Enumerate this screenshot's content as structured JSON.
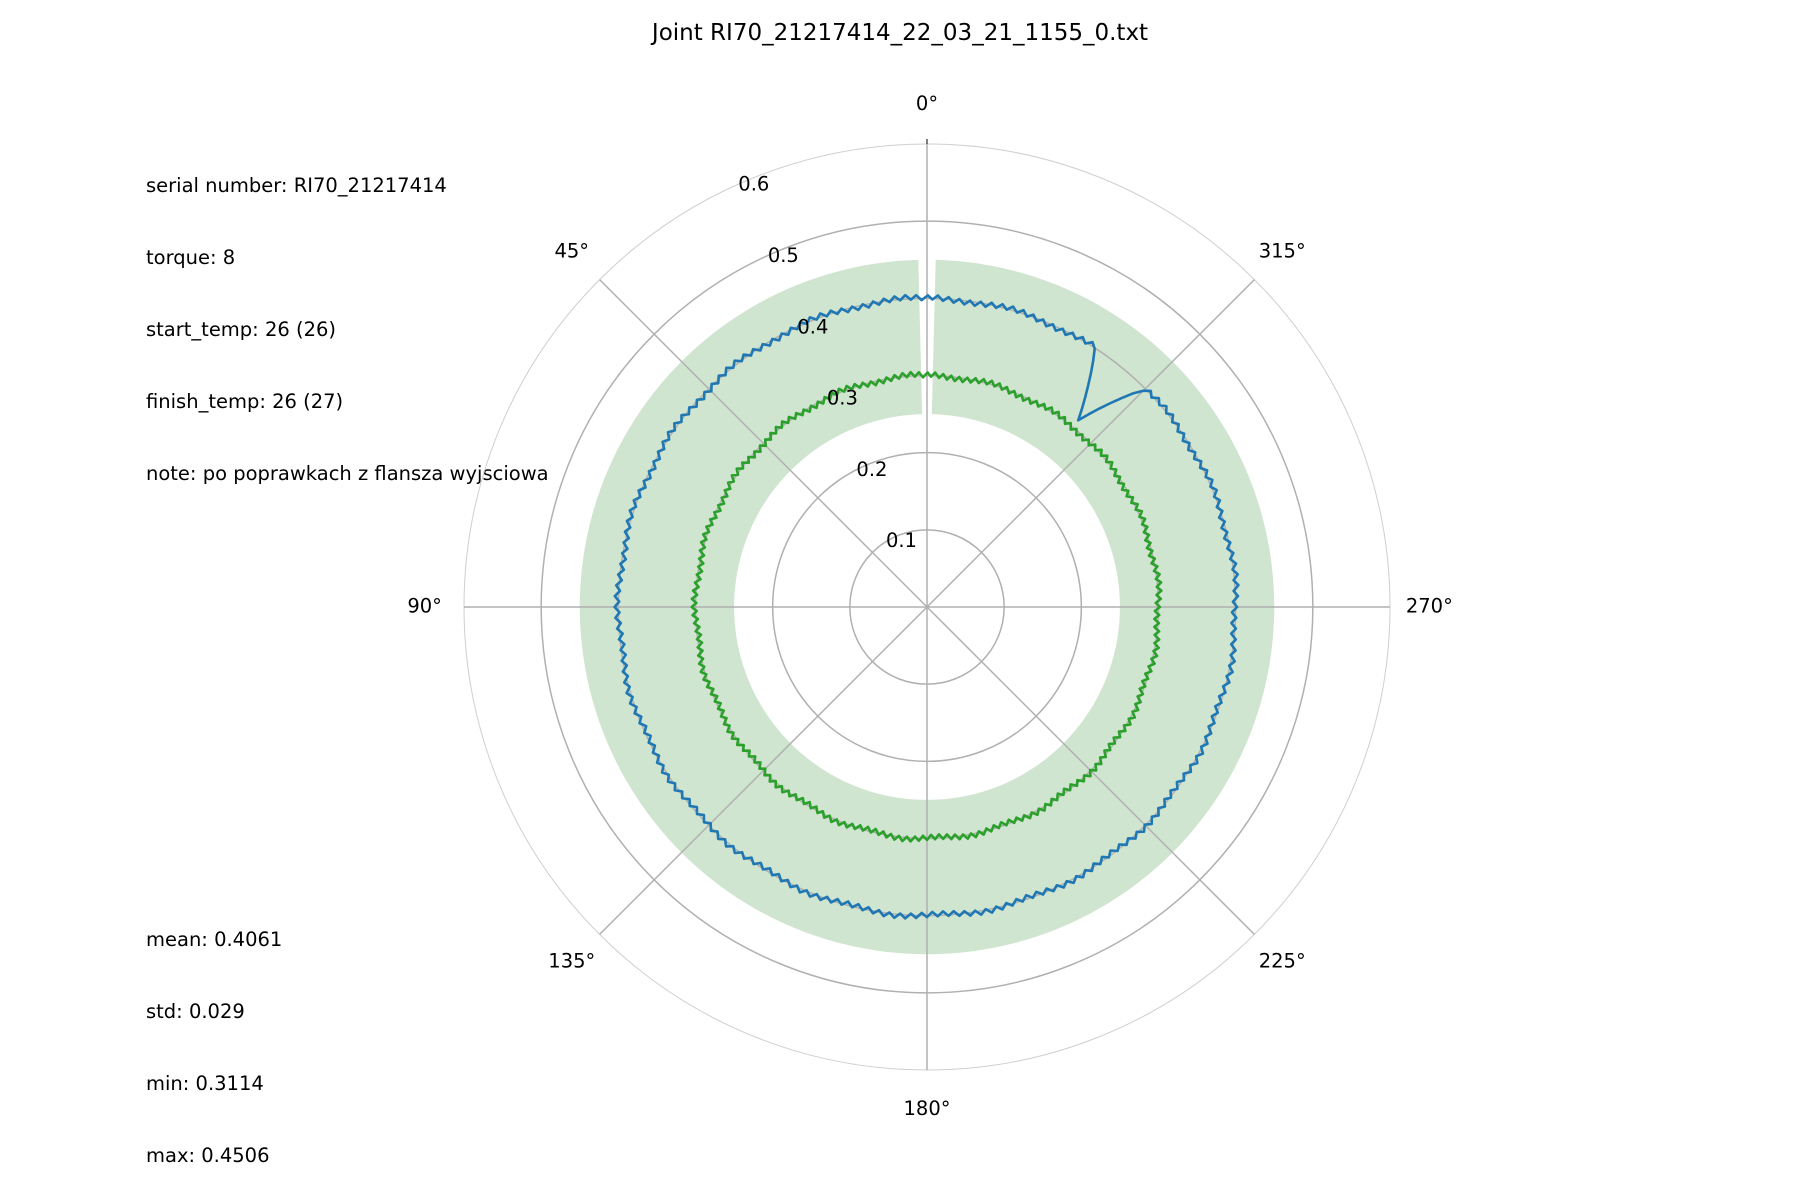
{
  "chart_data": {
    "type": "polar-line",
    "title": "Joint RI70_21217414_22_03_21_1155_0.txt",
    "theta_ticks": [
      "0°",
      "45°",
      "90°",
      "135°",
      "180°",
      "225°",
      "270°",
      "315°"
    ],
    "theta_direction": "counterclockwise",
    "theta_zero": "top",
    "r_ticks": [
      "0.1",
      "0.2",
      "0.3",
      "0.4",
      "0.5",
      "0.6"
    ],
    "rlim": [
      0,
      0.6
    ],
    "grid": true,
    "band": {
      "r_min": 0.25,
      "r_max": 0.45,
      "color": "#cfe5cf"
    },
    "series": [
      {
        "color": "#1f77b4",
        "base_r": 0.4,
        "spike": {
          "theta_deg": 321,
          "r": 0.3114
        }
      },
      {
        "color": "#2ca02c",
        "base_r": 0.3
      }
    ]
  },
  "info_top": [
    "serial number: RI70_21217414",
    "torque: 8",
    "start_temp: 26 (26)",
    "finish_temp: 26 (27)",
    "note: po poprawkach z flansza wyjsciowa"
  ],
  "info_bottom": [
    "mean: 0.4061",
    "std: 0.029",
    "min: 0.3114",
    "max: 0.4506"
  ]
}
